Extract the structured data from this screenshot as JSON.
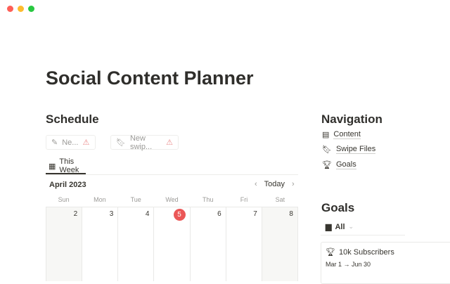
{
  "window": {
    "controls": [
      {
        "name": "close",
        "color": "#fe5f57"
      },
      {
        "name": "minimize",
        "color": "#febc2e"
      },
      {
        "name": "maximize",
        "color": "#28c840"
      }
    ]
  },
  "page": {
    "title": "Social Content Planner"
  },
  "schedule": {
    "heading": "Schedule",
    "buttons": [
      {
        "label": "Ne...",
        "icon": "edit-icon"
      },
      {
        "label": "New swip...",
        "icon": "bookmark-icon"
      }
    ],
    "tab": "This Week",
    "month": "April 2023",
    "today_label": "Today",
    "weekdays": [
      "Sun",
      "Mon",
      "Tue",
      "Wed",
      "Thu",
      "Fri",
      "Sat"
    ],
    "days": [
      "2",
      "3",
      "4",
      "5",
      "6",
      "7",
      "8"
    ],
    "today_color": "#eb5757"
  },
  "navigation": {
    "heading": "Navigation",
    "items": [
      {
        "label": "Content",
        "icon": "window-icon"
      },
      {
        "label": "Swipe Files",
        "icon": "bookmark-icon"
      },
      {
        "label": "Goals",
        "icon": "trophy-icon"
      }
    ]
  },
  "goals": {
    "heading": "Goals",
    "filter": "All",
    "card": {
      "title": "10k Subscribers",
      "dates": "Mar 1 → Jun 30"
    }
  }
}
